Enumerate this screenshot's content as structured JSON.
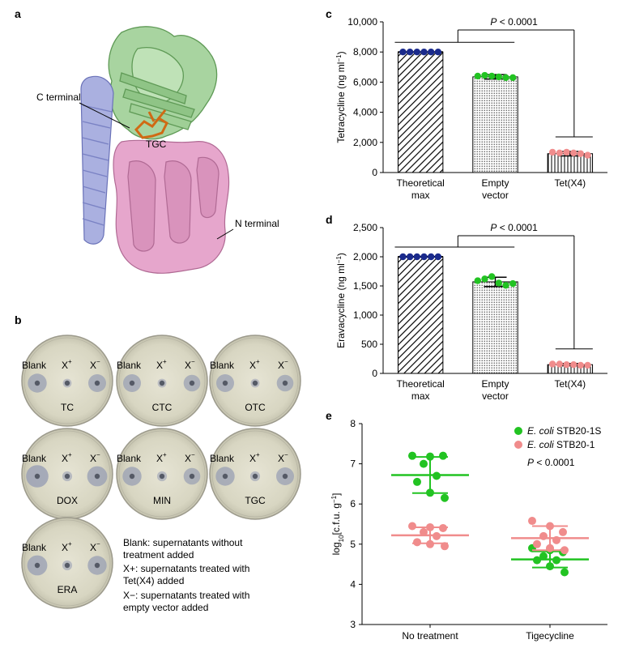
{
  "panels": {
    "a": {
      "letter": "a",
      "labels": {
        "c_terminal": "C terminal",
        "n_terminal": "N terminal",
        "ligand": "TGC"
      }
    },
    "b": {
      "letter": "b",
      "well_labels": {
        "blank": "Blank",
        "xplus": "X",
        "xplus_sup": "+",
        "xminus": "X",
        "xminus_sup": "−"
      },
      "plates": [
        {
          "name": "TC",
          "zones": {
            "blank": 0.55,
            "xplus": 0.1,
            "xminus": 0.5
          }
        },
        {
          "name": "CTC",
          "zones": {
            "blank": 0.5,
            "xplus": 0.1,
            "xminus": 0.45
          }
        },
        {
          "name": "OTC",
          "zones": {
            "blank": 0.5,
            "xplus": 0.1,
            "xminus": 0.45
          }
        },
        {
          "name": "DOX",
          "zones": {
            "blank": 0.7,
            "xplus": 0.15,
            "xminus": 0.6
          }
        },
        {
          "name": "MIN",
          "zones": {
            "blank": 0.55,
            "xplus": 0.15,
            "xminus": 0.45
          }
        },
        {
          "name": "TGC",
          "zones": {
            "blank": 0.55,
            "xplus": 0.15,
            "xminus": 0.5
          }
        },
        {
          "name": "ERA",
          "zones": {
            "blank": 0.6,
            "xplus": 0.15,
            "xminus": 0.55
          }
        }
      ],
      "legend": [
        "Blank: supernatants without",
        "treatment added",
        "X+: supernatants treated with",
        "Tet(X4) added",
        "X−: supernatants treated with",
        "empty vector added"
      ]
    }
  },
  "chart_data": [
    {
      "panel": "c",
      "type": "bar",
      "ylabel": "Tetracycline (ng ml−1)",
      "ylim": [
        0,
        10000
      ],
      "yticks": [
        "0",
        "2,000",
        "4,000",
        "6,000",
        "8,000",
        "10,000"
      ],
      "ytick_values": [
        0,
        2000,
        4000,
        6000,
        8000,
        10000
      ],
      "categories": [
        [
          "Theoretical",
          "max"
        ],
        [
          "Empty",
          "vector"
        ],
        [
          "Tet(X4)"
        ]
      ],
      "values": [
        8000,
        6350,
        1250
      ],
      "error": [
        0,
        150,
        150
      ],
      "points": [
        [
          8000,
          8000,
          8000,
          8000,
          8000,
          8000
        ],
        [
          6400,
          6450,
          6400,
          6350,
          6300,
          6300
        ],
        [
          1350,
          1300,
          1350,
          1300,
          1250,
          1150
        ]
      ],
      "colors": [
        "#1a2a8c",
        "#22c322",
        "#f08c8c"
      ],
      "annotation": "P < 0.0001"
    },
    {
      "panel": "d",
      "type": "bar",
      "ylabel": "Eravacycline (ng ml−1)",
      "ylim": [
        0,
        2500
      ],
      "yticks": [
        "0",
        "500",
        "1,000",
        "1,500",
        "2,000",
        "2,500"
      ],
      "ytick_values": [
        0,
        500,
        1000,
        1500,
        2000,
        2500
      ],
      "categories": [
        [
          "Theoretical",
          "max"
        ],
        [
          "Empty",
          "vector"
        ],
        [
          "Tet(X4)"
        ]
      ],
      "values": [
        2000,
        1570,
        150
      ],
      "error": [
        0,
        80,
        20
      ],
      "points": [
        [
          2000,
          2000,
          2000,
          2000,
          2000,
          2000
        ],
        [
          1590,
          1620,
          1660,
          1550,
          1510,
          1540
        ],
        [
          160,
          160,
          150,
          150,
          140,
          140
        ]
      ],
      "colors": [
        "#1a2a8c",
        "#22c322",
        "#f08c8c"
      ],
      "annotation": "P < 0.0001"
    },
    {
      "panel": "e",
      "type": "scatter",
      "ylabel": "log10[c.f.u. g−1]",
      "ylim": [
        3,
        8
      ],
      "yticks": [
        "3",
        "4",
        "5",
        "6",
        "7",
        "8"
      ],
      "ytick_values": [
        3,
        4,
        5,
        6,
        7,
        8
      ],
      "categories": [
        "No treatment",
        "Tigecycline"
      ],
      "series": [
        {
          "name": "E. coli STB20-1S",
          "color": "#22c322",
          "groups": [
            {
              "mean": 6.72,
              "sd": 0.45,
              "points": [
                7.2,
                7.18,
                7.2,
                7.0,
                6.7,
                6.55,
                6.28,
                6.15
              ]
            },
            {
              "mean": 4.62,
              "sd": 0.2,
              "points": [
                4.9,
                4.85,
                4.8,
                4.7,
                4.6,
                4.6,
                4.45,
                4.3
              ]
            }
          ]
        },
        {
          "name": "E. coli STB20-1",
          "color": "#f08c8c",
          "groups": [
            {
              "mean": 5.22,
              "sd": 0.2,
              "points": [
                5.45,
                5.42,
                5.4,
                5.3,
                5.2,
                5.05,
                5.0,
                4.95
              ]
            },
            {
              "mean": 5.15,
              "sd": 0.3,
              "points": [
                5.58,
                5.45,
                5.3,
                5.2,
                5.1,
                5.0,
                4.9,
                4.85
              ]
            }
          ]
        }
      ],
      "legend": [
        {
          "italic": "E. coli",
          "rest": " STB20-1S"
        },
        {
          "italic": "E. coli",
          "rest": " STB20-1"
        }
      ],
      "annotation": "P < 0.0001"
    }
  ],
  "panel_letters": {
    "c": "c",
    "d": "d",
    "e": "e"
  }
}
